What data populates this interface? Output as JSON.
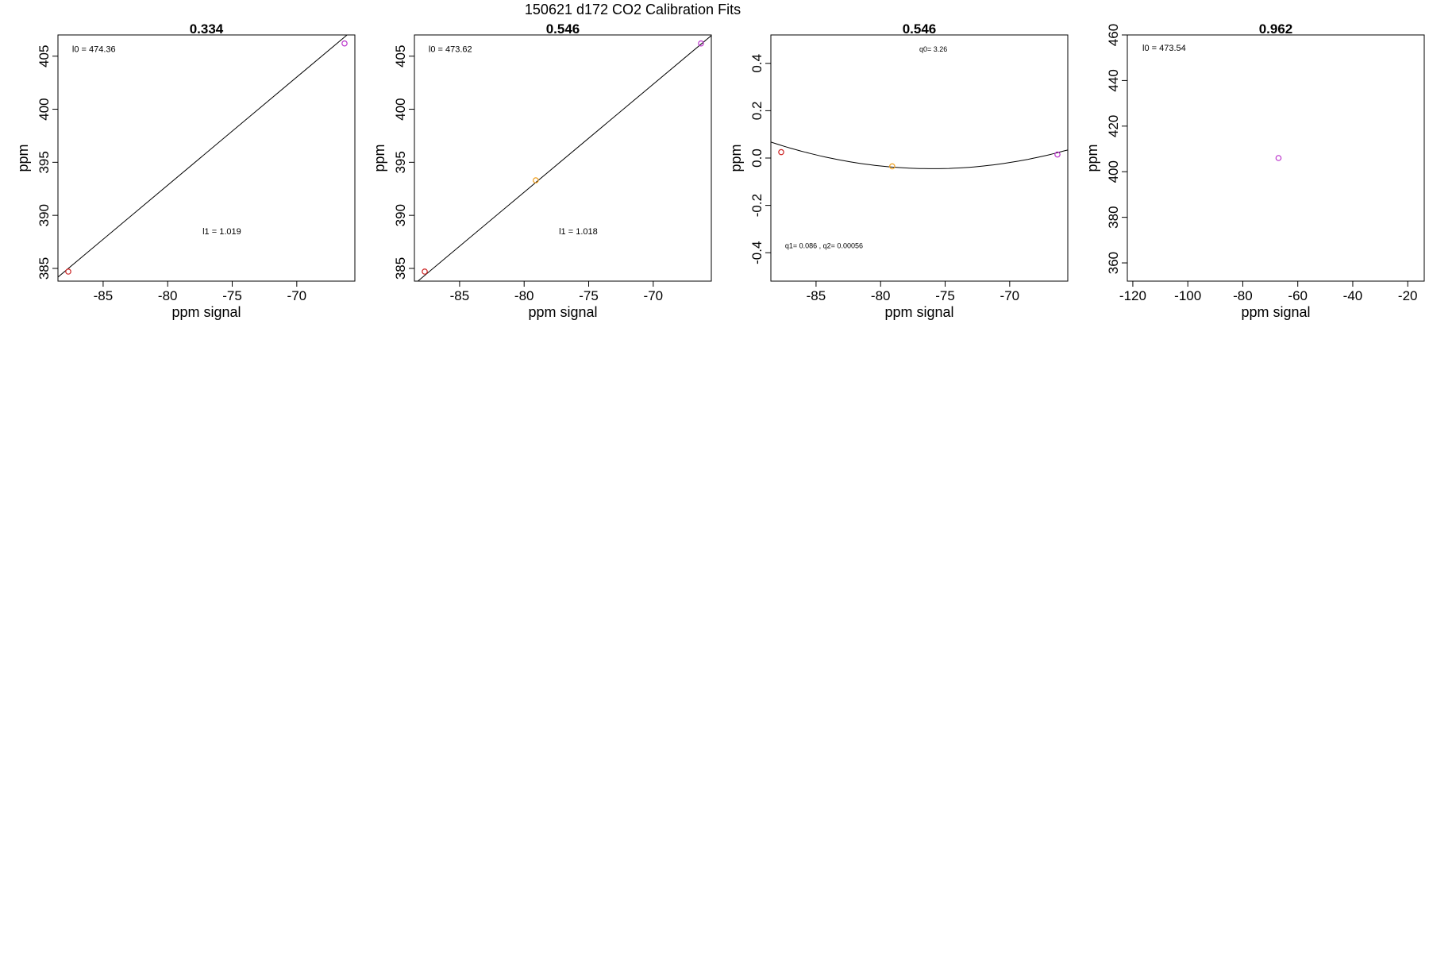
{
  "figure": {
    "suptitle": "150621   d172   CO2 Calibration Fits"
  },
  "chart_data": [
    {
      "type": "scatter",
      "title": "0.334",
      "xlabel": "ppm signal",
      "ylabel": "ppm",
      "xlim": [
        -88.5,
        -65.5
      ],
      "ylim": [
        383.8,
        407.0
      ],
      "xticks": [
        -85,
        -80,
        -75,
        -70
      ],
      "xtick_labels": [
        "-85",
        "-80",
        "-75",
        "-70"
      ],
      "yticks": [
        385,
        390,
        395,
        400,
        405
      ],
      "ytick_labels": [
        "385",
        "390",
        "395",
        "400",
        "405"
      ],
      "points": [
        {
          "x": -87.7,
          "y": 384.7,
          "color": "#cc2222"
        },
        {
          "x": -66.3,
          "y": 406.2,
          "color": "#bb33cc"
        }
      ],
      "fit": {
        "kind": "linear",
        "intercept": 474.36,
        "slope": 1.019
      },
      "annotations": [
        {
          "text": "l0 =  474.36",
          "x": -87.4,
          "y": 405.4,
          "size": "normal"
        },
        {
          "text": "l1 =  1.019",
          "x": -77.3,
          "y": 388.2,
          "size": "normal"
        }
      ]
    },
    {
      "type": "scatter",
      "title": "0.546",
      "xlabel": "ppm signal",
      "ylabel": "ppm",
      "xlim": [
        -88.5,
        -65.5
      ],
      "ylim": [
        383.8,
        407.0
      ],
      "xticks": [
        -85,
        -80,
        -75,
        -70
      ],
      "xtick_labels": [
        "-85",
        "-80",
        "-75",
        "-70"
      ],
      "yticks": [
        385,
        390,
        395,
        400,
        405
      ],
      "ytick_labels": [
        "385",
        "390",
        "395",
        "400",
        "405"
      ],
      "points": [
        {
          "x": -87.7,
          "y": 384.7,
          "color": "#cc2222"
        },
        {
          "x": -79.1,
          "y": 393.3,
          "color": "#f0a020"
        },
        {
          "x": -66.3,
          "y": 406.2,
          "color": "#bb33cc"
        }
      ],
      "fit": {
        "kind": "linear",
        "intercept": 473.62,
        "slope": 1.018
      },
      "annotations": [
        {
          "text": "l0 =  473.62",
          "x": -87.4,
          "y": 405.4,
          "size": "normal"
        },
        {
          "text": "l1 =  1.018",
          "x": -77.3,
          "y": 388.2,
          "size": "normal"
        }
      ]
    },
    {
      "type": "scatter",
      "title": "0.546",
      "xlabel": "ppm signal",
      "ylabel": "ppm",
      "xlim": [
        -88.5,
        -65.5
      ],
      "ylim": [
        -0.52,
        0.52
      ],
      "xticks": [
        -85,
        -80,
        -75,
        -70
      ],
      "xtick_labels": [
        "-85",
        "-80",
        "-75",
        "-70"
      ],
      "yticks": [
        -0.4,
        -0.2,
        0.0,
        0.2,
        0.4
      ],
      "ytick_labels": [
        "-0.4",
        "-0.2",
        "0.0",
        "0.2",
        "0.4"
      ],
      "points": [
        {
          "x": -87.7,
          "y": 0.025,
          "color": "#cc2222"
        },
        {
          "x": -79.1,
          "y": -0.035,
          "color": "#f0a020"
        },
        {
          "x": -66.3,
          "y": 0.015,
          "color": "#bb33cc"
        }
      ],
      "fit": {
        "kind": "quadratic",
        "q0": 3.26,
        "q1": 0.086,
        "q2": 0.00056
      },
      "annotations": [
        {
          "text": "q0= 3.26",
          "x": -77.0,
          "y": 0.45,
          "size": "small"
        },
        {
          "text": "q1= 0.086 , q2= 0.00056",
          "x": -87.4,
          "y": -0.38,
          "size": "small"
        }
      ]
    },
    {
      "type": "scatter",
      "title": "0.962",
      "xlabel": "ppm signal",
      "ylabel": "ppm",
      "xlim": [
        -122,
        -14
      ],
      "ylim": [
        352,
        460
      ],
      "xticks": [
        -120,
        -100,
        -80,
        -60,
        -40,
        -20
      ],
      "xtick_labels": [
        "-120",
        "-100",
        "-80",
        "-60",
        "-40",
        "-20"
      ],
      "yticks": [
        360,
        380,
        400,
        420,
        440,
        460
      ],
      "ytick_labels": [
        "360",
        "380",
        "400",
        "420",
        "440",
        "460"
      ],
      "points": [
        {
          "x": -67.0,
          "y": 406.0,
          "color": "#bb33cc"
        }
      ],
      "fit": {
        "kind": "none"
      },
      "annotations": [
        {
          "text": "l0 =  473.54",
          "x": -116.5,
          "y": 453.0,
          "size": "normal"
        }
      ]
    }
  ]
}
